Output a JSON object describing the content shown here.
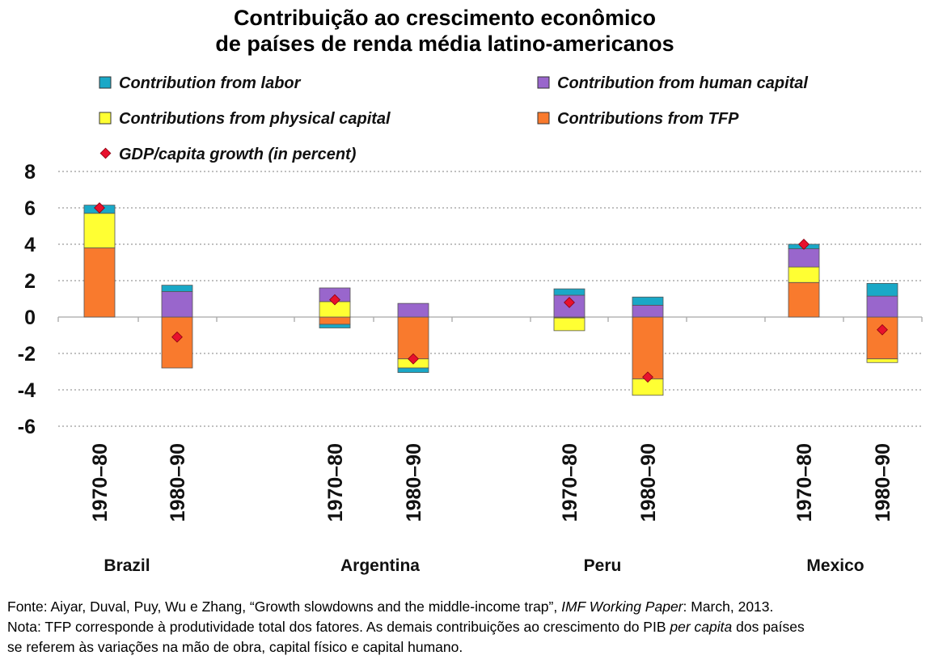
{
  "title_line1": "Contribuição ao crescimento econômico",
  "title_line2": "de países de renda média latino-americanos",
  "chart_data": {
    "type": "bar",
    "stacked": true,
    "ylim": [
      -6,
      8
    ],
    "yticks": [
      8,
      6,
      4,
      2,
      0,
      -2,
      -4,
      -6
    ],
    "grid": "dotted horizontal",
    "legend_placement": "top",
    "groups": [
      "Brazil",
      "Argentina",
      "Peru",
      "Mexico"
    ],
    "categories": [
      {
        "group": "Brazil",
        "period": "1970–80"
      },
      {
        "group": "Brazil",
        "period": "1980–90"
      },
      {
        "group": "Argentina",
        "period": "1970–80"
      },
      {
        "group": "Argentina",
        "period": "1980–90"
      },
      {
        "group": "Peru",
        "period": "1970–80"
      },
      {
        "group": "Peru",
        "period": "1980–90"
      },
      {
        "group": "Mexico",
        "period": "1970–80"
      },
      {
        "group": "Mexico",
        "period": "1980–90"
      }
    ],
    "series": [
      {
        "name": "Contributions from TFP",
        "color": "#f97a2d",
        "values": [
          3.8,
          -2.8,
          -0.4,
          -2.3,
          -0.05,
          -3.4,
          1.9,
          -2.3
        ]
      },
      {
        "name": "Contributions from physical capital",
        "color": "#ffff33",
        "values": [
          1.9,
          0.0,
          0.85,
          -0.5,
          -0.7,
          -0.9,
          0.85,
          -0.2
        ]
      },
      {
        "name": "Contribution from human capital",
        "color": "#9966cc",
        "values": [
          0.0,
          1.4,
          0.75,
          0.75,
          1.2,
          0.65,
          1.0,
          1.15
        ]
      },
      {
        "name": "Contribution from labor",
        "color": "#1aa8c7",
        "values": [
          0.45,
          0.35,
          -0.2,
          -0.25,
          0.35,
          0.45,
          0.25,
          0.7
        ]
      }
    ],
    "gdp_series": {
      "name": "GDP/capita growth (in percent)",
      "color": "#e8112d",
      "values": [
        6.0,
        -1.1,
        0.95,
        -2.3,
        0.8,
        -3.3,
        4.0,
        -0.7
      ]
    }
  },
  "legend": {
    "labor": "Contribution from labor",
    "human_capital": "Contribution from human capital",
    "physical_capital": "Contributions from physical capital",
    "tfp": "Contributions from TFP",
    "gdp": "GDP/capita growth (in percent)"
  },
  "footer": {
    "source_prefix": "Fonte: Aiyar, Duval, Puy, Wu e Zhang, “Growth slowdowns and the middle-income trap”, ",
    "source_italic": "IMF Working Paper",
    "source_suffix": ": March, 2013.",
    "note_prefix": "Nota: TFP corresponde à produtividade total dos fatores. As demais contribuições ao crescimento do PIB ",
    "note_italic": "per capita",
    "note_suffix": " dos países",
    "note_line3": "se referem às variações na mão de obra, capital físico e capital humano."
  }
}
